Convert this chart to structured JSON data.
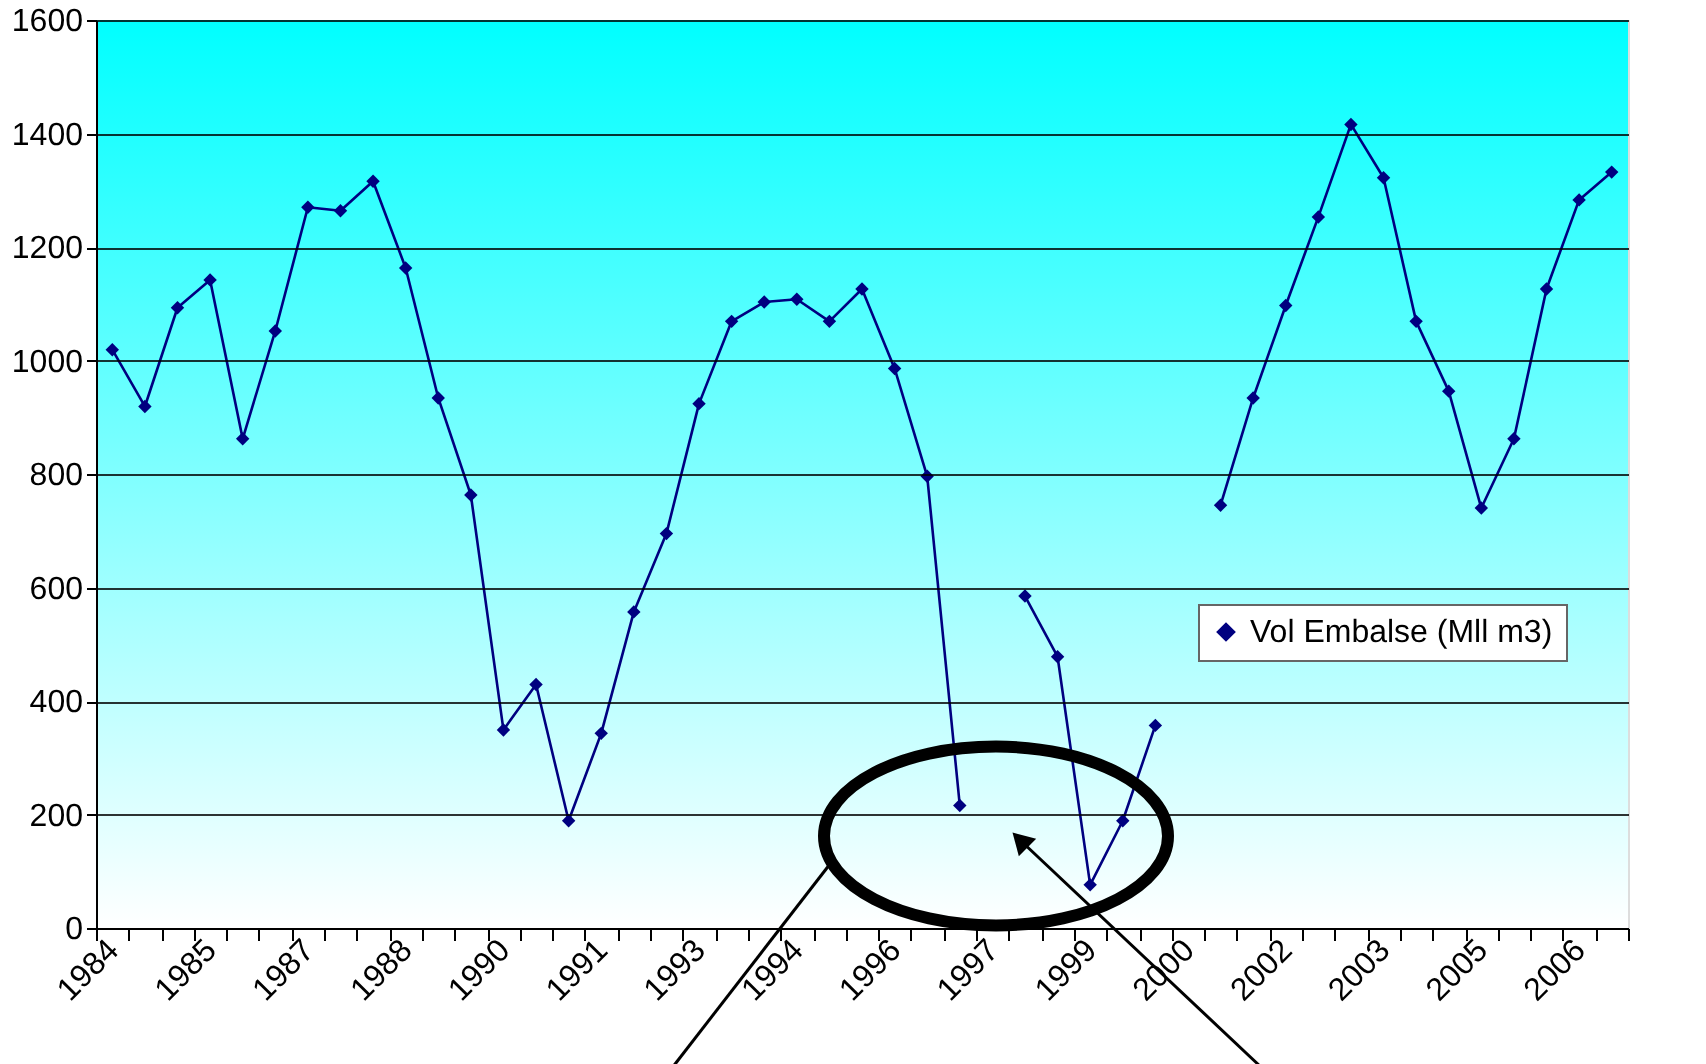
{
  "chart_data": {
    "type": "line",
    "categories": [
      "1984",
      null,
      null,
      "1985",
      null,
      null,
      "1987",
      null,
      null,
      "1988",
      null,
      null,
      "1990",
      null,
      null,
      "1991",
      null,
      null,
      "1993",
      null,
      null,
      "1994",
      null,
      null,
      "1996",
      null,
      null,
      "1997",
      null,
      null,
      "1999",
      null,
      null,
      "2000",
      null,
      null,
      "2002",
      null,
      null,
      "2003",
      null,
      null,
      "2005",
      null,
      null,
      "2006",
      null
    ],
    "series": [
      {
        "name": "Vol Embalse (Mll m3)",
        "color": "#000080",
        "values": [
          1019,
          919,
          1093,
          1142,
          862,
          1052,
          1270,
          1264,
          1316,
          1163,
          934,
          763,
          349,
          429,
          189,
          343,
          557,
          695,
          924,
          1069,
          1103,
          1108,
          1069,
          1126,
          986,
          796,
          216,
          null,
          585,
          478,
          76,
          189,
          357,
          null,
          745,
          934,
          1097,
          1253,
          1416,
          1322,
          1069,
          946,
          740,
          862,
          1126,
          1283,
          1332
        ]
      }
    ],
    "ylim": [
      0,
      1600
    ],
    "yticks": [
      0,
      200,
      400,
      600,
      800,
      1000,
      1200,
      1400,
      1600
    ],
    "grid": "y",
    "legend": "right",
    "marker": "diamond",
    "line_style": "solid"
  }
}
